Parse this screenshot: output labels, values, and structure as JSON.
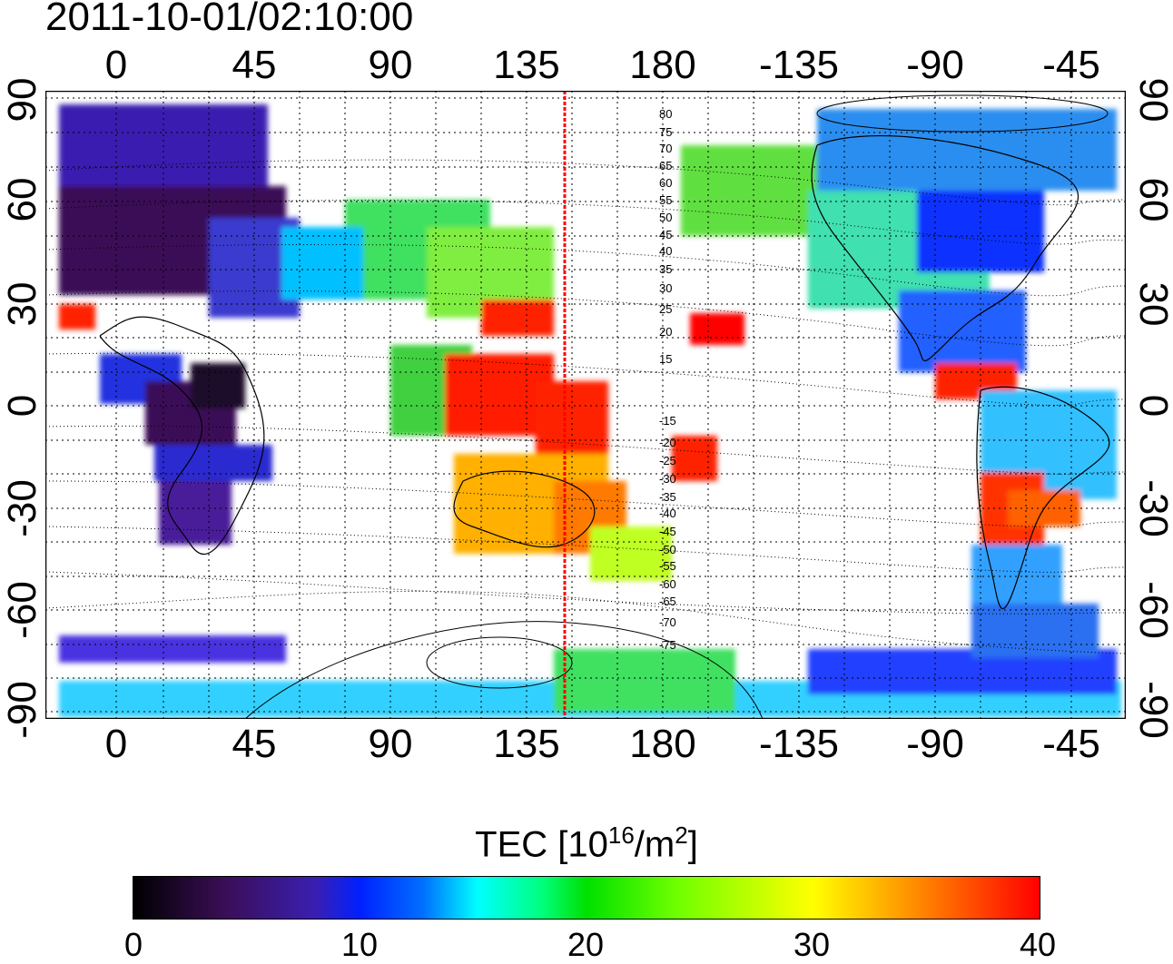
{
  "timestamp": "2011-10-01/02:10:00",
  "map": {
    "type": "global ionospheric TEC map",
    "projection": "equirectangular",
    "longitude_range": [
      -22,
      330
    ],
    "latitude_range": [
      -92,
      92
    ],
    "grid": true,
    "longitude_tick_labels": [
      "0",
      "45",
      "90",
      "135",
      "180",
      "-135",
      "-90",
      "-45"
    ],
    "latitude_tick_labels": [
      "90",
      "60",
      "30",
      "0",
      "-30",
      "-60",
      "-90"
    ],
    "meridian_marker_longitude": 147,
    "meridian_marker_color": "#ff0000",
    "contour_labels": [
      "80",
      "75",
      "70",
      "65",
      "60",
      "55",
      "50",
      "45",
      "40",
      "35",
      "30",
      "25",
      "20",
      "15",
      "-15",
      "-20",
      "-25",
      "-30",
      "-35",
      "-40",
      "-45",
      "-50",
      "-55",
      "-60",
      "-65",
      "-70",
      "-75"
    ]
  },
  "colorbar": {
    "title": "TEC  [10",
    "title_sup1": "16",
    "title_mid": "/m",
    "title_sup2": "2",
    "title_end": "]",
    "range": [
      0,
      40
    ],
    "tick_labels": [
      "0",
      "10",
      "20",
      "30",
      "40"
    ]
  }
}
